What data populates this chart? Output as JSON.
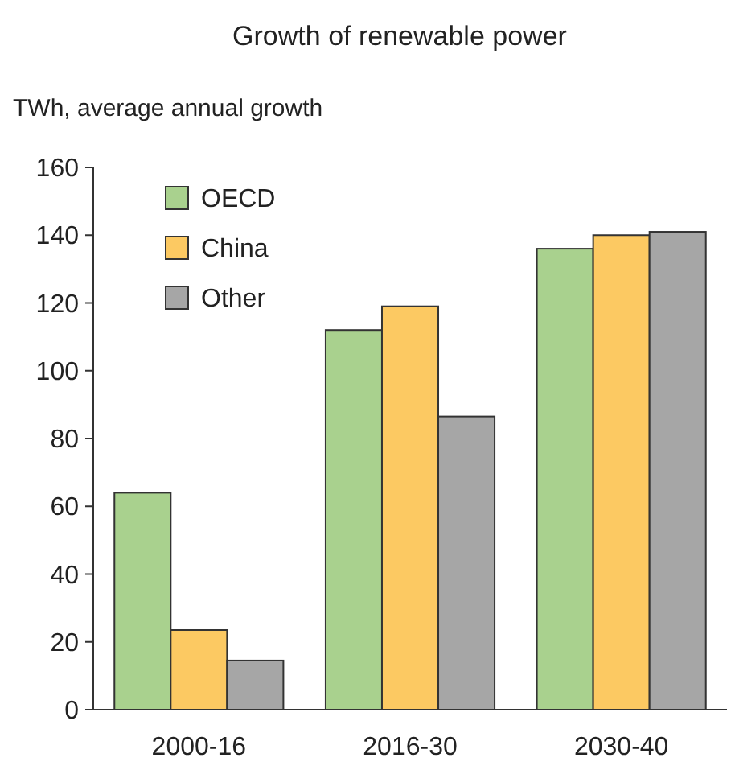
{
  "chart_data": {
    "type": "bar",
    "title": "Growth of renewable power",
    "ylabel": "TWh, average annual growth",
    "categories": [
      "2000-16",
      "2016-30",
      "2030-40"
    ],
    "series": [
      {
        "name": "OECD",
        "color": "#a9d18e",
        "values": [
          64,
          112,
          136
        ]
      },
      {
        "name": "China",
        "color": "#fcc962",
        "values": [
          23.5,
          119,
          140
        ]
      },
      {
        "name": "Other",
        "color": "#a6a6a6",
        "values": [
          14.5,
          86.5,
          141
        ]
      }
    ],
    "ylim": [
      0,
      160
    ],
    "yticks": [
      0,
      20,
      40,
      60,
      80,
      100,
      120,
      140,
      160
    ],
    "grid": false,
    "legend": "top left"
  }
}
